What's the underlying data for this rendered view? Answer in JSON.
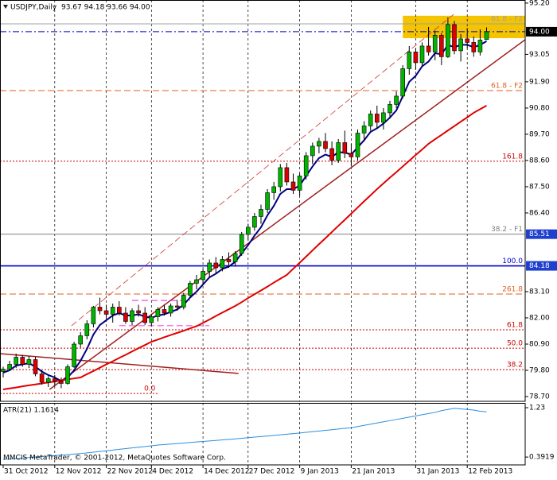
{
  "chart_data": {
    "type": "candlestick",
    "title": "USDJPY,Daily  93.67 94.18 93.66 94.00",
    "footer": "MMCIS MetaTrader, © 2001-2012, MetaQuotes Software Corp.",
    "categories": [
      "31 Oct 2012",
      null,
      null,
      null,
      null,
      null,
      null,
      null,
      "12 Nov 2012",
      null,
      null,
      null,
      null,
      null,
      null,
      null,
      "22 Nov 2012",
      null,
      null,
      null,
      null,
      null,
      null,
      "4 Dec 2012",
      null,
      null,
      null,
      null,
      null,
      null,
      null,
      "14 Dec 2012",
      null,
      null,
      null,
      null,
      null,
      null,
      "27 Dec 2012",
      null,
      null,
      null,
      null,
      null,
      null,
      null,
      "9 Jan 2013",
      null,
      null,
      null,
      null,
      null,
      null,
      null,
      "21 Jan 2013",
      null,
      null,
      null,
      null,
      null,
      null,
      null,
      null,
      null,
      "31 Jan 2013",
      null,
      null,
      null,
      null,
      null,
      null,
      null,
      "12 Feb 2013",
      null,
      null,
      null
    ],
    "ohlc": {
      "open": [
        79.75,
        79.85,
        80.05,
        80.35,
        80.05,
        80.25,
        79.65,
        79.3,
        79.45,
        79.35,
        79.25,
        79.95,
        80.9,
        81.25,
        81.75,
        82.45,
        82.3,
        82.15,
        82.45,
        82.2,
        81.85,
        82.3,
        82.2,
        81.8,
        82.05,
        82.35,
        82.2,
        82.5,
        82.45,
        82.95,
        83.45,
        83.6,
        83.95,
        84.3,
        84.1,
        84.45,
        84.35,
        84.7,
        85.5,
        85.8,
        86.25,
        86.55,
        87.25,
        87.5,
        88.3,
        87.7,
        87.35,
        87.95,
        88.8,
        89.2,
        89.4,
        89.1,
        88.6,
        89.35,
        88.9,
        88.75,
        89.75,
        90.05,
        90.55,
        90.2,
        90.6,
        90.95,
        91.3,
        92.45,
        93.15,
        92.7,
        93.4,
        93.15,
        93.85,
        92.95,
        94.3,
        93.2,
        93.7,
        93.55,
        93.15,
        93.67
      ],
      "high": [
        79.95,
        80.2,
        80.5,
        80.45,
        80.4,
        80.35,
        79.8,
        79.55,
        79.6,
        79.5,
        80.05,
        81.0,
        81.4,
        81.9,
        82.5,
        82.85,
        82.55,
        82.6,
        82.7,
        82.45,
        82.4,
        82.55,
        82.45,
        82.15,
        82.45,
        82.55,
        82.6,
        82.75,
        83.05,
        83.55,
        83.8,
        84.05,
        84.45,
        84.55,
        84.6,
        84.75,
        84.8,
        85.6,
        85.95,
        86.4,
        86.75,
        87.4,
        87.7,
        88.45,
        88.5,
        88.05,
        88.05,
        88.95,
        89.35,
        89.55,
        89.75,
        89.4,
        89.5,
        89.85,
        89.3,
        89.9,
        90.25,
        90.7,
        90.9,
        90.8,
        91.1,
        91.5,
        92.6,
        93.4,
        93.3,
        93.55,
        94.2,
        94.05,
        93.95,
        94.6,
        94.45,
        93.9,
        94.15,
        93.8,
        94.1,
        94.18
      ],
      "low": [
        79.5,
        79.8,
        79.9,
        79.95,
        79.9,
        79.55,
        79.2,
        79.1,
        79.15,
        79.05,
        79.2,
        79.9,
        80.75,
        81.1,
        81.6,
        82.15,
        81.95,
        81.8,
        82.1,
        81.75,
        81.7,
        82.05,
        81.7,
        81.65,
        81.85,
        82.1,
        82.05,
        82.3,
        82.35,
        82.85,
        83.2,
        83.4,
        83.7,
        83.85,
        83.95,
        84.1,
        84.15,
        84.6,
        85.25,
        85.65,
        85.95,
        86.4,
        86.95,
        87.3,
        87.55,
        87.2,
        87.1,
        87.8,
        88.45,
        88.9,
        88.95,
        88.4,
        88.5,
        88.7,
        88.35,
        88.6,
        89.4,
        89.85,
        89.95,
        89.9,
        90.35,
        90.8,
        91.2,
        92.2,
        92.4,
        92.55,
        93.0,
        92.8,
        92.6,
        92.9,
        93.05,
        92.75,
        93.3,
        92.95,
        93.0,
        93.66
      ],
      "close": [
        79.85,
        80.05,
        80.35,
        80.05,
        80.25,
        79.65,
        79.3,
        79.45,
        79.35,
        79.25,
        79.95,
        80.9,
        81.25,
        81.75,
        82.45,
        82.3,
        82.15,
        82.45,
        82.2,
        81.85,
        82.3,
        82.2,
        81.8,
        82.05,
        82.35,
        82.2,
        82.5,
        82.45,
        82.95,
        83.45,
        83.6,
        83.95,
        84.3,
        84.1,
        84.45,
        84.35,
        84.7,
        85.5,
        85.8,
        86.25,
        86.55,
        87.25,
        87.5,
        88.3,
        87.7,
        87.35,
        87.95,
        88.8,
        89.2,
        89.4,
        89.1,
        88.6,
        89.35,
        88.9,
        88.75,
        89.75,
        90.05,
        90.55,
        90.2,
        90.6,
        90.95,
        91.3,
        92.45,
        93.15,
        92.7,
        93.4,
        93.15,
        93.85,
        92.95,
        94.3,
        93.2,
        93.7,
        93.55,
        93.15,
        93.65,
        94.0
      ],
      "up_color": "#00b400",
      "down_color": "#dd0000",
      "wick_color": "#000000"
    },
    "ma": [
      {
        "color": "#000080",
        "values": [
          79.7,
          79.8,
          80.0,
          80.05,
          80.1,
          79.95,
          79.75,
          79.6,
          79.5,
          79.35,
          79.5,
          79.8,
          80.2,
          80.7,
          81.3,
          81.7,
          81.9,
          82.1,
          82.2,
          82.1,
          82.1,
          82.15,
          82.05,
          82.0,
          82.1,
          82.15,
          82.25,
          82.35,
          82.55,
          82.85,
          83.1,
          83.4,
          83.7,
          83.85,
          84.05,
          84.15,
          84.35,
          84.7,
          85.05,
          85.45,
          85.8,
          86.3,
          86.7,
          87.2,
          87.4,
          87.4,
          87.55,
          87.95,
          88.35,
          88.7,
          88.85,
          88.75,
          88.95,
          88.93,
          88.85,
          89.15,
          89.45,
          89.8,
          89.95,
          90.15,
          90.4,
          90.7,
          91.3,
          91.9,
          92.15,
          92.55,
          92.75,
          93.1,
          93.05,
          93.45,
          93.35,
          93.45,
          93.45,
          93.35,
          93.45,
          93.6
        ]
      },
      {
        "color": "#e00000",
        "values": [
          79.0,
          79.04,
          79.08,
          79.13,
          79.17,
          79.21,
          79.25,
          79.29,
          79.33,
          79.38,
          79.42,
          79.46,
          79.5,
          79.64,
          79.77,
          79.91,
          80.05,
          80.18,
          80.32,
          80.45,
          80.59,
          80.73,
          80.86,
          81.0,
          81.09,
          81.19,
          81.28,
          81.37,
          81.46,
          81.56,
          81.65,
          81.79,
          81.93,
          82.08,
          82.22,
          82.36,
          82.5,
          82.66,
          82.83,
          82.99,
          83.15,
          83.31,
          83.48,
          83.64,
          83.8,
          84.06,
          84.31,
          84.57,
          84.83,
          85.09,
          85.34,
          85.6,
          85.86,
          86.11,
          86.37,
          86.63,
          86.89,
          87.14,
          87.4,
          87.64,
          87.88,
          88.11,
          88.35,
          88.59,
          88.83,
          89.06,
          89.3,
          89.49,
          89.67,
          89.86,
          90.04,
          90.23,
          90.41,
          90.6,
          90.75,
          90.9
        ]
      }
    ],
    "ylim": [
      78.5,
      95.33
    ],
    "yticks": [
      {
        "value": 95.2,
        "label": "95.20"
      },
      {
        "value": 93.05,
        "label": "93.05"
      },
      {
        "value": 91.9,
        "label": "91.90"
      },
      {
        "value": 90.8,
        "label": "90.80"
      },
      {
        "value": 89.7,
        "label": "89.70"
      },
      {
        "value": 88.6,
        "label": "88.60"
      },
      {
        "value": 87.5,
        "label": "87.50"
      },
      {
        "value": 86.4,
        "label": "86.40"
      },
      {
        "value": 83.1,
        "label": "83.10"
      },
      {
        "value": 82.0,
        "label": "82.00"
      },
      {
        "value": 80.9,
        "label": "80.90"
      },
      {
        "value": 79.8,
        "label": "79.80"
      },
      {
        "value": 78.7,
        "label": "78.70"
      }
    ],
    "levels": [
      {
        "value": 94.33,
        "label": "61.8 - F2",
        "color": "#a0a0a0",
        "style": "solid"
      },
      {
        "value": 94.0,
        "tag": "94.00",
        "tag_color": "#000000",
        "color": "#0000cc",
        "style": "dashdot"
      },
      {
        "value": 91.53,
        "label": "61.8 - F2",
        "color": "#e06020",
        "style": "dashed"
      },
      {
        "value": 88.57,
        "label": "161.8",
        "color": "#cc0000",
        "style": "dotted"
      },
      {
        "value": 85.51,
        "label": "38.2 - F1",
        "tag": "85.51",
        "tag_color": "#1f3fcf",
        "color": "#808080",
        "style": "solid"
      },
      {
        "value": 84.18,
        "label": "100.0",
        "tag": "84.18",
        "tag_color": "#1f3fcf",
        "color": "#0000cc",
        "style": "solid"
      },
      {
        "value": 83.0,
        "label": "261.8",
        "color": "#e06020",
        "style": "dashed"
      },
      {
        "value": 81.5,
        "label": "61.8",
        "color": "#cc0000",
        "style": "dotted"
      },
      {
        "value": 80.73,
        "label": "50.0",
        "color": "#cc0000",
        "style": "dotted"
      },
      {
        "value": 79.83,
        "label": "38.2",
        "color": "#cc0000",
        "style": "dotted"
      },
      {
        "value": 78.83,
        "label": "0.0",
        "color": "#cc0000",
        "style": "dotted",
        "x": [
          -1,
          24
        ]
      }
    ],
    "zones": [
      {
        "x": [
          62,
          81
        ],
        "y": [
          93.73,
          94.67
        ],
        "color": "#f5c400"
      }
    ],
    "trendlines": [
      {
        "x": [
          10.6,
          69.9
        ],
        "y": [
          81.67,
          94.73
        ],
        "color": "#cc3333",
        "style": "dashed"
      },
      {
        "x": [
          7.2,
          81
        ],
        "y": [
          79.0,
          93.67
        ],
        "color": "#a02020",
        "style": "solid"
      },
      {
        "x": [
          -0.5,
          36.5
        ],
        "y": [
          80.5,
          79.67
        ],
        "color": "#a02020",
        "style": "solid"
      },
      {
        "x": [
          20,
          29
        ],
        "y": [
          82.73,
          82.73
        ],
        "color": "#dd00dd",
        "style": "dashed"
      },
      {
        "x": [
          18,
          32
        ],
        "y": [
          81.67,
          81.67
        ],
        "color": "#dd00dd",
        "style": "dashed"
      }
    ],
    "grid": true,
    "atr": {
      "label": "ATR(21) 1.1614",
      "color": "#2a8fdf",
      "ylim": [
        0.2585,
        1.311
      ],
      "yticks": [
        1.23,
        0.3919
      ],
      "values": [
        0.35,
        0.358,
        0.367,
        0.375,
        0.383,
        0.392,
        0.4,
        0.408,
        0.417,
        0.425,
        0.433,
        0.442,
        0.45,
        0.462,
        0.474,
        0.486,
        0.498,
        0.51,
        0.523,
        0.535,
        0.547,
        0.559,
        0.571,
        0.583,
        0.595,
        0.604,
        0.613,
        0.621,
        0.63,
        0.639,
        0.648,
        0.656,
        0.665,
        0.674,
        0.683,
        0.691,
        0.7,
        0.71,
        0.72,
        0.73,
        0.74,
        0.75,
        0.76,
        0.77,
        0.78,
        0.79,
        0.8,
        0.811,
        0.823,
        0.834,
        0.845,
        0.856,
        0.868,
        0.879,
        0.89,
        0.91,
        0.93,
        0.95,
        0.97,
        0.99,
        1.01,
        1.03,
        1.05,
        1.07,
        1.09,
        1.11,
        1.13,
        1.15,
        1.18,
        1.2,
        1.22,
        1.21,
        1.2,
        1.19,
        1.17,
        1.1614
      ]
    }
  }
}
